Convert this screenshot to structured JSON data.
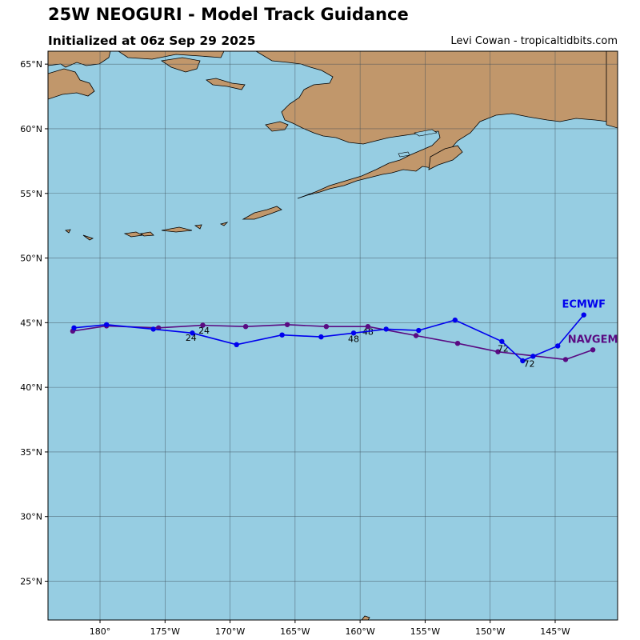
{
  "header": {
    "title": "25W NEOGURI - Model Track Guidance",
    "subtitle": "Initialized at 06z Sep 29 2025",
    "credit": "Levi Cowan - tropicaltidbits.com"
  },
  "colors": {
    "ocean": "#96cde2",
    "land": "#c1976b",
    "grid": "#3c4c55",
    "ecmwf": "#0000ee",
    "navgem": "#5a0a82"
  },
  "chart_data": {
    "type": "map",
    "lon_range": [
      -184,
      -140.2
    ],
    "lat_range": [
      22,
      66
    ],
    "lon_ticks": [
      {
        "value": -180,
        "label": "180°"
      },
      {
        "value": -175,
        "label": "175°W"
      },
      {
        "value": -170,
        "label": "170°W"
      },
      {
        "value": -165,
        "label": "165°W"
      },
      {
        "value": -160,
        "label": "160°W"
      },
      {
        "value": -155,
        "label": "155°W"
      },
      {
        "value": -150,
        "label": "150°W"
      },
      {
        "value": -145,
        "label": "145°W"
      }
    ],
    "lat_ticks": [
      {
        "value": 25,
        "label": "25°N"
      },
      {
        "value": 30,
        "label": "30°N"
      },
      {
        "value": 35,
        "label": "35°N"
      },
      {
        "value": 40,
        "label": "40°N"
      },
      {
        "value": 45,
        "label": "45°N"
      },
      {
        "value": 50,
        "label": "50°N"
      },
      {
        "value": 55,
        "label": "55°N"
      },
      {
        "value": 60,
        "label": "60°N"
      },
      {
        "value": 65,
        "label": "65°N"
      }
    ],
    "series": [
      {
        "name": "ECMWF",
        "color": "#0000ee",
        "points": [
          [
            -182.0,
            44.6
          ],
          [
            -179.5,
            44.85
          ],
          [
            -175.9,
            44.5
          ],
          [
            -172.9,
            44.2
          ],
          [
            -169.5,
            43.3
          ],
          [
            -166.0,
            44.05
          ],
          [
            -163.0,
            43.9
          ],
          [
            -160.5,
            44.2
          ],
          [
            -158.0,
            44.5
          ],
          [
            -155.5,
            44.4
          ],
          [
            -152.7,
            45.2
          ],
          [
            -149.1,
            43.55
          ],
          [
            -147.5,
            42.05
          ],
          [
            -146.7,
            42.4
          ],
          [
            -144.8,
            43.2
          ],
          [
            -142.8,
            45.6
          ]
        ],
        "hour_labels": [
          {
            "lon": -173.0,
            "lat": 43.6,
            "text": "24"
          },
          {
            "lon": -160.5,
            "lat": 43.5,
            "text": "48"
          },
          {
            "lon": -147.0,
            "lat": 41.6,
            "text": "72"
          }
        ]
      },
      {
        "name": "NAVGEM",
        "color": "#5a0a82",
        "points": [
          [
            -182.1,
            44.35
          ],
          [
            -179.5,
            44.75
          ],
          [
            -175.5,
            44.6
          ],
          [
            -172.1,
            44.8
          ],
          [
            -168.8,
            44.7
          ],
          [
            -165.6,
            44.85
          ],
          [
            -162.6,
            44.7
          ],
          [
            -159.4,
            44.7
          ],
          [
            -155.7,
            44.0
          ],
          [
            -152.5,
            43.4
          ],
          [
            -149.4,
            42.75
          ],
          [
            -144.2,
            42.15
          ],
          [
            -142.1,
            42.9
          ]
        ],
        "hour_labels": [
          {
            "lon": -172.0,
            "lat": 44.15,
            "text": "24"
          },
          {
            "lon": -159.4,
            "lat": 44.05,
            "text": "48"
          },
          {
            "lon": -149.0,
            "lat": 42.75,
            "text": "72"
          }
        ]
      }
    ]
  }
}
